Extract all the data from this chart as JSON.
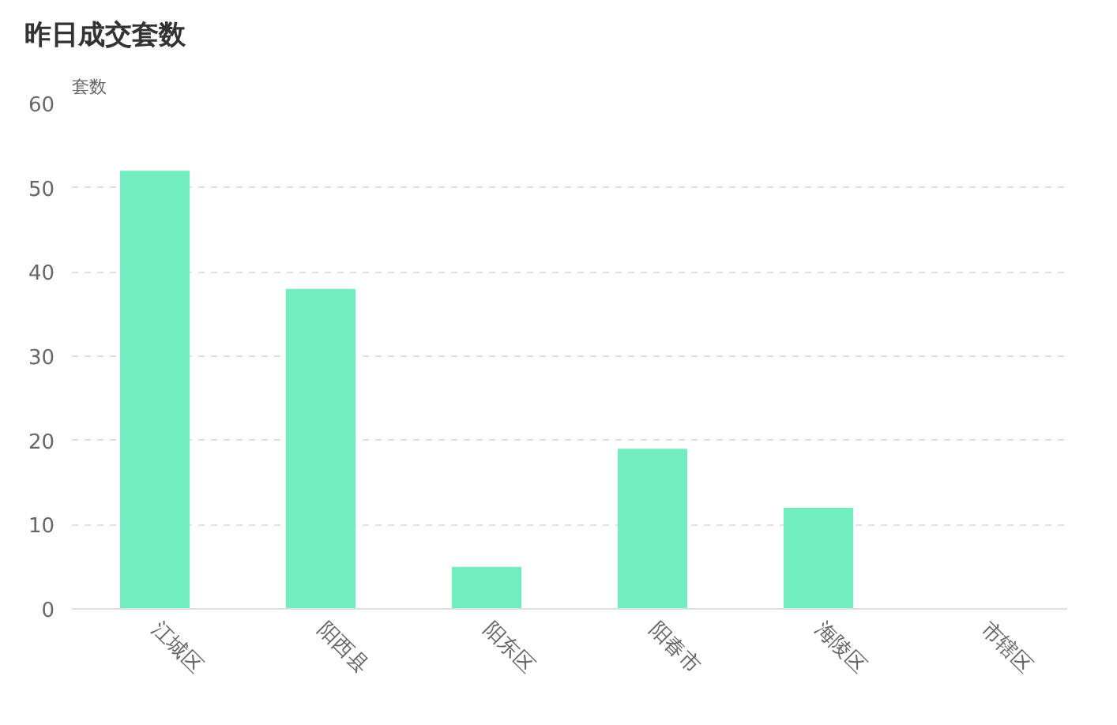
{
  "chart_data": {
    "type": "bar",
    "title": "昨日成交套数",
    "ylabel": "套数",
    "categories": [
      "江城区",
      "阳西县",
      "阳东区",
      "阳春市",
      "海陵区",
      "市辖区"
    ],
    "values": [
      52,
      38,
      5,
      19,
      12,
      0
    ],
    "color": "#72edc0",
    "ylim": [
      0,
      60
    ],
    "yticks": [
      0,
      10,
      20,
      30,
      40,
      50,
      60
    ],
    "grid": "y"
  }
}
